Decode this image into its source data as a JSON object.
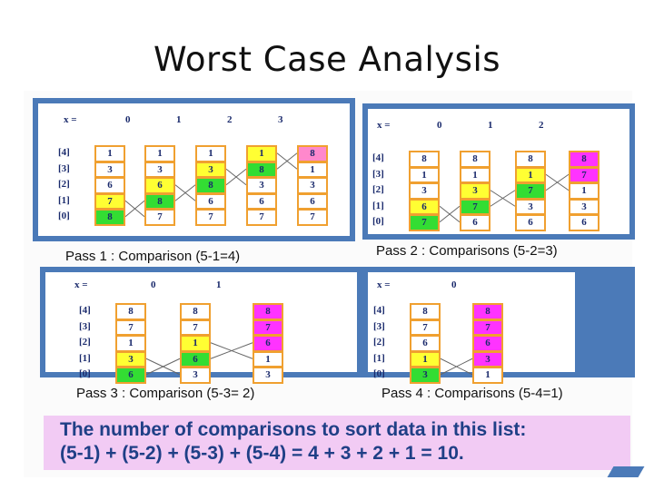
{
  "title": "Worst Case Analysis",
  "colors": {
    "frame": "#4b7ab8",
    "cell_border": "#f0a030",
    "yellow": "#ffff33",
    "green": "#33dd33",
    "magenta": "#ff33ff",
    "pink": "#ff88cc",
    "white": "#ffffff",
    "summary_bg": "#f2cbf4",
    "summary_text": "#1f3f86"
  },
  "index_labels": [
    "[4]",
    "[3]",
    "[2]",
    "[1]",
    "[0]"
  ],
  "x_label": "x =",
  "panels": [
    {
      "caption": "Pass 1 : Comparison (5-1=4)",
      "x_values": [
        "0",
        "1",
        "2",
        "3"
      ],
      "columns": [
        {
          "values": [
            "1",
            "3",
            "6",
            "7",
            "8"
          ],
          "fills": [
            "white",
            "white",
            "white",
            "yellow",
            "green"
          ]
        },
        {
          "values": [
            "1",
            "3",
            "6",
            "8",
            "7"
          ],
          "fills": [
            "white",
            "white",
            "yellow",
            "green",
            "white"
          ]
        },
        {
          "values": [
            "1",
            "3",
            "8",
            "6",
            "7"
          ],
          "fills": [
            "white",
            "yellow",
            "green",
            "white",
            "white"
          ]
        },
        {
          "values": [
            "1",
            "8",
            "3",
            "6",
            "7"
          ],
          "fills": [
            "yellow",
            "green",
            "white",
            "white",
            "white"
          ]
        },
        {
          "values": [
            "8",
            "1",
            "3",
            "6",
            "7"
          ],
          "fills": [
            "pink",
            "white",
            "white",
            "white",
            "white"
          ]
        }
      ]
    },
    {
      "caption": "Pass 2 : Comparisons (5-2=3)",
      "x_values": [
        "0",
        "1",
        "2"
      ],
      "columns": [
        {
          "values": [
            "8",
            "1",
            "3",
            "6",
            "7"
          ],
          "fills": [
            "white",
            "white",
            "white",
            "yellow",
            "green"
          ]
        },
        {
          "values": [
            "8",
            "1",
            "3",
            "7",
            "6"
          ],
          "fills": [
            "white",
            "white",
            "yellow",
            "green",
            "white"
          ]
        },
        {
          "values": [
            "8",
            "1",
            "7",
            "3",
            "6"
          ],
          "fills": [
            "white",
            "yellow",
            "green",
            "white",
            "white"
          ]
        },
        {
          "values": [
            "8",
            "7",
            "1",
            "3",
            "6"
          ],
          "fills": [
            "magenta",
            "magenta",
            "white",
            "white",
            "white"
          ]
        }
      ]
    },
    {
      "caption": "Pass 3 : Comparison (5-3= 2)",
      "x_values": [
        "0",
        "1"
      ],
      "columns": [
        {
          "values": [
            "8",
            "7",
            "1",
            "3",
            "6"
          ],
          "fills": [
            "white",
            "white",
            "white",
            "yellow",
            "green"
          ]
        },
        {
          "values": [
            "8",
            "7",
            "1",
            "6",
            "3"
          ],
          "fills": [
            "white",
            "white",
            "yellow",
            "green",
            "white"
          ]
        },
        {
          "values": [
            "8",
            "7",
            "6",
            "1",
            "3"
          ],
          "fills": [
            "magenta",
            "magenta",
            "magenta",
            "white",
            "white"
          ]
        }
      ]
    },
    {
      "caption": "Pass 4 : Comparisons (5-4=1)",
      "x_values": [
        "0"
      ],
      "columns": [
        {
          "values": [
            "8",
            "7",
            "6",
            "1",
            "3"
          ],
          "fills": [
            "white",
            "white",
            "white",
            "yellow",
            "green"
          ]
        },
        {
          "values": [
            "8",
            "7",
            "6",
            "3",
            "1"
          ],
          "fills": [
            "magenta",
            "magenta",
            "magenta",
            "magenta",
            "white"
          ]
        }
      ]
    }
  ],
  "summary": {
    "line1": "The number of comparisons to sort data in this list:",
    "line2": "(5-1) + (5-2) + (5-3) + (5-4) = 4 + 3 + 2 + 1 = 10."
  }
}
